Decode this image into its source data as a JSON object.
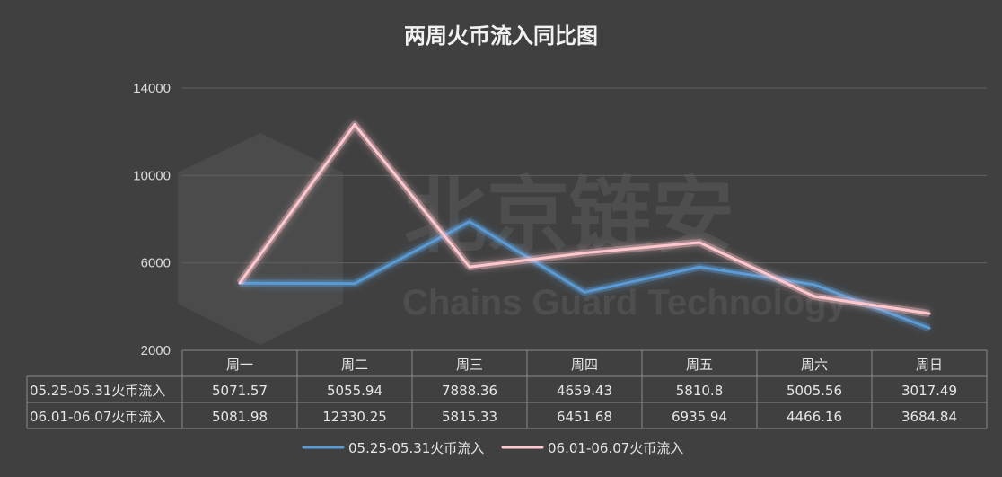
{
  "chart_data": {
    "type": "line",
    "title": "两周火币流入同比图",
    "categories": [
      "周一",
      "周二",
      "周三",
      "周四",
      "周五",
      "周六",
      "周日"
    ],
    "yticks": [
      "14000",
      "10000",
      "6000",
      "2000"
    ],
    "ylim": [
      2000,
      14000
    ],
    "grid": true,
    "legend_position": "bottom",
    "series": [
      {
        "name": "05.25-05.31火币流入",
        "color": "#5b9bd5",
        "values": [
          5071.57,
          5055.94,
          7888.36,
          4659.43,
          5810.8,
          5005.56,
          3017.49
        ],
        "labels": [
          "5071.57",
          "5055.94",
          "7888.36",
          "4659.43",
          "5810.8",
          "5005.56",
          "3017.49"
        ]
      },
      {
        "name": "06.01-06.07火币流入",
        "color": "#ffc7ce",
        "values": [
          5081.98,
          12330.25,
          5815.33,
          6451.68,
          6935.94,
          4466.16,
          3684.84
        ],
        "labels": [
          "5081.98",
          "12330.25",
          "5815.33",
          "6451.68",
          "6935.94",
          "4466.16",
          "3684.84"
        ]
      }
    ]
  },
  "watermark": {
    "text_cn": "北京链安",
    "text_en": "Chains Guard Technology"
  }
}
